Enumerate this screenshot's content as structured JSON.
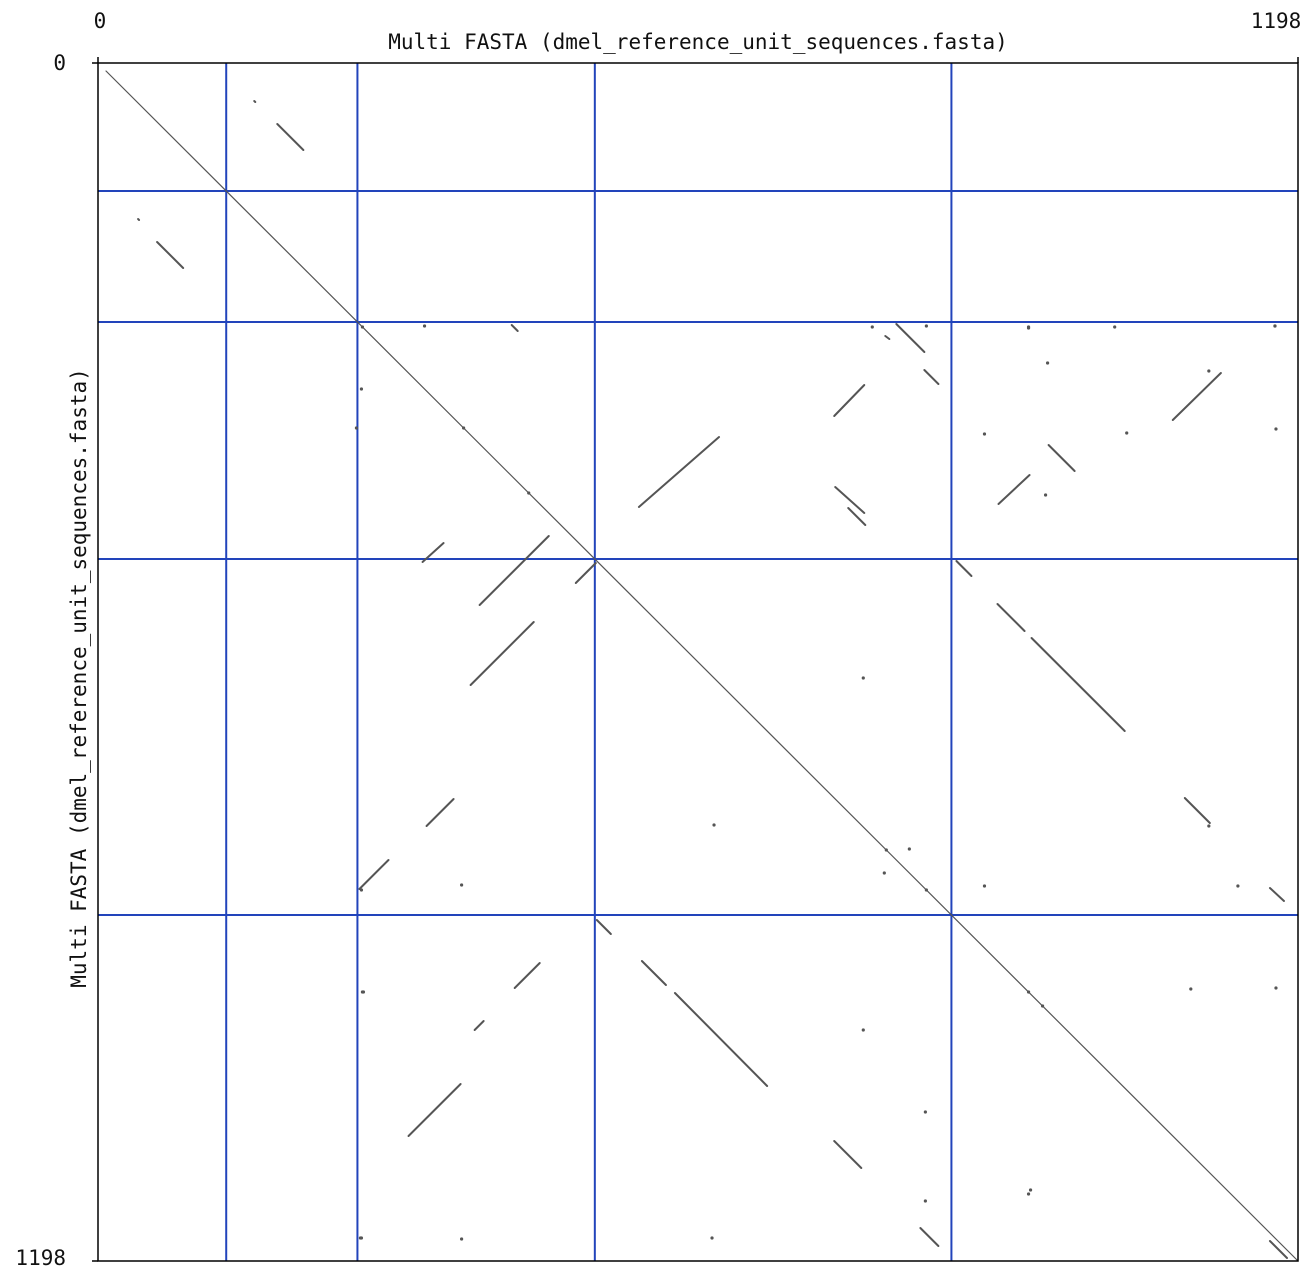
{
  "chart_data": {
    "type": "dotplot",
    "title": "Multi FASTA (dmel_reference_unit_sequences.fasta)",
    "xlabel": "Multi FASTA (dmel_reference_unit_sequences.fasta)",
    "ylabel": "Multi FASTA (dmel_reference_unit_sequences.fasta)",
    "xlim": [
      0,
      1198
    ],
    "ylim": [
      0,
      1198
    ],
    "x_ticks": [
      {
        "value": 0,
        "label": "0"
      },
      {
        "value": 1198,
        "label": "1198"
      }
    ],
    "y_ticks": [
      {
        "value": 0,
        "label": "0"
      },
      {
        "value": 1198,
        "label": "1198"
      }
    ],
    "sequence_boundaries": [
      128,
      259,
      496,
      852
    ],
    "colors": {
      "boundary": "#2244bb",
      "match": "#555555",
      "frame": "#000000"
    },
    "segments": [
      [
        8,
        8,
        1198,
        1198
      ],
      [
        179,
        61,
        205,
        87
      ],
      [
        59,
        179,
        85,
        205
      ],
      [
        156,
        38,
        157,
        39
      ],
      [
        40,
        156,
        41,
        157
      ],
      [
        749,
        445,
        766,
        462
      ],
      [
        736,
        424,
        765,
        450
      ],
      [
        797,
        261,
        825,
        289
      ],
      [
        839,
        321,
        825,
        307
      ],
      [
        735,
        353,
        765,
        322
      ],
      [
        1073,
        357,
        1121,
        310
      ],
      [
        949,
        382,
        975,
        408
      ],
      [
        899,
        441,
        930,
        412
      ],
      [
        540,
        444,
        620,
        374
      ],
      [
        857,
        498,
        872,
        513
      ],
      [
        898,
        541,
        925,
        568
      ],
      [
        932,
        575,
        1025,
        668
      ],
      [
        324,
        499,
        345,
        480
      ],
      [
        381,
        542,
        450,
        473
      ],
      [
        372,
        622,
        435,
        559
      ],
      [
        1085,
        735,
        1110,
        760
      ],
      [
        328,
        763,
        355,
        736
      ],
      [
        261,
        826,
        290,
        797
      ],
      [
        498,
        857,
        512,
        871
      ],
      [
        543,
        898,
        567,
        922
      ],
      [
        576,
        930,
        668,
        1023
      ],
      [
        416,
        925,
        441,
        900
      ],
      [
        376,
        967,
        385,
        958
      ],
      [
        1170,
        825,
        1184,
        838
      ],
      [
        1170,
        1178,
        1187,
        1195
      ],
      [
        735,
        1078,
        762,
        1105
      ],
      [
        821,
        1165,
        839,
        1183
      ],
      [
        310,
        1073,
        362,
        1021
      ],
      [
        477,
        520,
        497,
        500
      ],
      [
        413,
        262,
        419,
        268
      ],
      [
        786,
        273,
        790,
        276
      ]
    ],
    "dots": [
      [
        264,
        264
      ],
      [
        365,
        365
      ],
      [
        430,
        430
      ],
      [
        787,
        787
      ],
      [
        827,
        827
      ],
      [
        929,
        929
      ],
      [
        943,
        943
      ],
      [
        263,
        326
      ],
      [
        263,
        827
      ],
      [
        326,
        263
      ],
      [
        827,
        263
      ],
      [
        265,
        929
      ],
      [
        929,
        265
      ],
      [
        1175,
        263
      ],
      [
        263,
        1175
      ],
      [
        929,
        264
      ],
      [
        264,
        929
      ],
      [
        773,
        264
      ],
      [
        885,
        371
      ],
      [
        885,
        823
      ],
      [
        613,
        1175
      ],
      [
        1109,
        763
      ],
      [
        1109,
        308
      ],
      [
        1091,
        926
      ],
      [
        826,
        1049
      ],
      [
        1027,
        370
      ],
      [
        948,
        300
      ],
      [
        946,
        432
      ],
      [
        258,
        365
      ],
      [
        1015,
        264
      ],
      [
        1176,
        925
      ],
      [
        1176,
        366
      ],
      [
        1175,
        263
      ],
      [
        764,
        615
      ],
      [
        764,
        967
      ],
      [
        615,
        762
      ],
      [
        363,
        1176
      ],
      [
        363,
        822
      ],
      [
        826,
        1138
      ],
      [
        262,
        1175
      ],
      [
        1138,
        823
      ],
      [
        785,
        810
      ],
      [
        810,
        786
      ],
      [
        929,
        1131
      ],
      [
        931,
        1127
      ]
    ]
  }
}
